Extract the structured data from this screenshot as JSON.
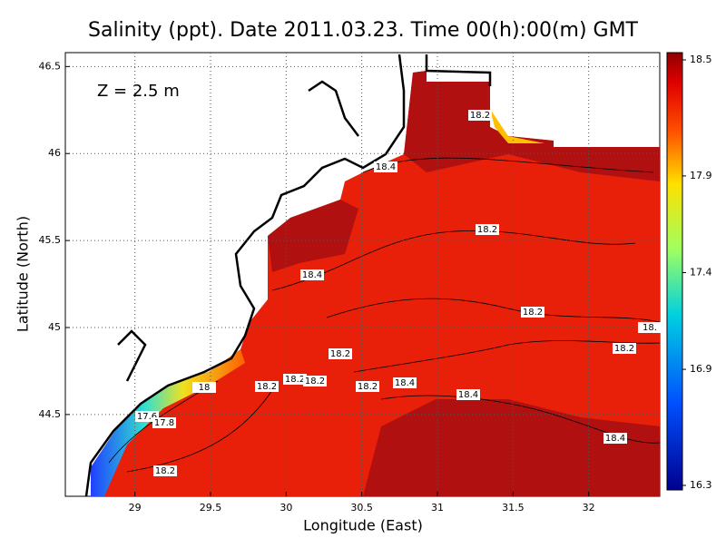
{
  "title": "Salinity (ppt). Date 2011.03.23. Time 00(h):00(m) GMT",
  "annotation": "Z = 2.5 m",
  "x_axis": {
    "label": "Longitude (East)",
    "xlim": [
      28.54,
      32.47
    ],
    "xticks": [
      29,
      29.5,
      30,
      30.5,
      31,
      31.5,
      32
    ]
  },
  "y_axis": {
    "label": "Latitude (North)",
    "ylim": [
      44.03,
      46.58
    ],
    "yticks": [
      44.5,
      45,
      45.5,
      46,
      46.5
    ]
  },
  "colorbar": {
    "lim": [
      16.27,
      18.53
    ],
    "ticks": [
      16.3,
      16.9,
      17.4,
      17.9,
      18.5
    ]
  },
  "contour_labels": [
    "18.2",
    "18.4",
    "18.2",
    "18.4",
    "18.2",
    "18.",
    "18.2",
    "18.2",
    "18.2",
    "18.2",
    "18.2",
    "18.4",
    "18.4",
    "18.2",
    "18",
    "17.6",
    "17.8",
    "18.4",
    "18.2"
  ]
}
